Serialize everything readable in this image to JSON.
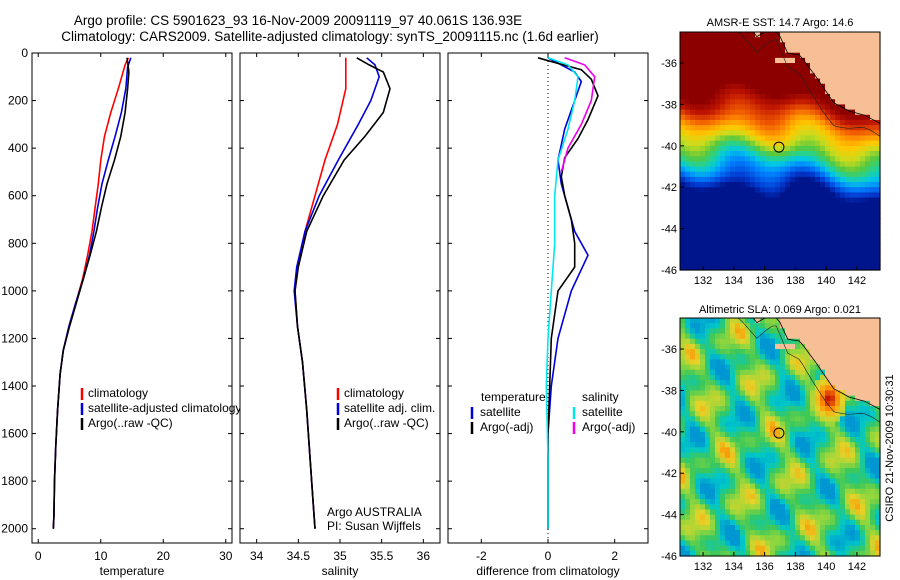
{
  "title": {
    "line1": "Argo profile: CS 5901623_93 16-Nov-2009 20091119_97 40.061S 136.93E",
    "line2": "Climatology: CARS2009. Satellite-adjusted climatology: synTS_20091115.nc (1.6d earlier)"
  },
  "side_label": "CSIRO 21-Nov-2009 10:30:31",
  "colors": {
    "climatology": "#ff0000",
    "satellite": "#0000dd",
    "argo": "#000000",
    "satellite_salinity": "#00e8ee",
    "argo_salinity": "#ee00ee",
    "land": "#f7bf96",
    "map_frame": "#000000"
  },
  "chart_data": [
    {
      "type": "line",
      "xlabel": "temperature",
      "ylabel": "",
      "xlim": [
        -1,
        31
      ],
      "ylim": [
        2060,
        0
      ],
      "xticks": [
        0,
        10,
        20,
        30
      ],
      "yticks": [
        0,
        200,
        400,
        600,
        800,
        1000,
        1200,
        1400,
        1600,
        1800,
        2000
      ],
      "legend": {
        "placement": "lower-right",
        "entries": [
          "climatology",
          "satellite-adjusted climatology",
          "Argo(..raw -QC)"
        ]
      },
      "series": [
        {
          "name": "climatology",
          "color_key": "climatology",
          "points": [
            [
              14.4,
              20
            ],
            [
              13.9,
              50
            ],
            [
              12.8,
              150
            ],
            [
              11.6,
              250
            ],
            [
              10.6,
              350
            ],
            [
              10.0,
              450
            ],
            [
              9.6,
              550
            ],
            [
              9.1,
              650
            ],
            [
              8.6,
              750
            ],
            [
              7.9,
              850
            ],
            [
              7.1,
              950
            ],
            [
              6.0,
              1050
            ],
            [
              4.9,
              1150
            ],
            [
              4.0,
              1250
            ],
            [
              3.5,
              1350
            ],
            [
              3.1,
              1500
            ],
            [
              2.8,
              1650
            ],
            [
              2.6,
              1800
            ],
            [
              2.5,
              1950
            ],
            [
              2.4,
              2000
            ]
          ]
        },
        {
          "name": "satellite-adjusted climatology",
          "color_key": "satellite",
          "points": [
            [
              14.8,
              20
            ],
            [
              14.3,
              60
            ],
            [
              14.0,
              150
            ],
            [
              13.3,
              250
            ],
            [
              12.3,
              350
            ],
            [
              11.2,
              450
            ],
            [
              10.2,
              550
            ],
            [
              9.5,
              650
            ],
            [
              8.9,
              750
            ],
            [
              8.2,
              850
            ],
            [
              7.2,
              950
            ],
            [
              6.0,
              1050
            ],
            [
              4.9,
              1150
            ],
            [
              4.0,
              1250
            ],
            [
              3.5,
              1350
            ],
            [
              3.1,
              1500
            ],
            [
              2.8,
              1650
            ],
            [
              2.6,
              1800
            ],
            [
              2.5,
              1950
            ],
            [
              2.4,
              2000
            ]
          ]
        },
        {
          "name": "Argo(..raw -QC)",
          "color_key": "argo",
          "points": [
            [
              14.2,
              20
            ],
            [
              14.5,
              80
            ],
            [
              14.3,
              150
            ],
            [
              13.9,
              250
            ],
            [
              13.2,
              350
            ],
            [
              12.2,
              450
            ],
            [
              11.0,
              550
            ],
            [
              10.1,
              650
            ],
            [
              9.3,
              750
            ],
            [
              8.3,
              850
            ],
            [
              7.2,
              950
            ],
            [
              6.1,
              1050
            ],
            [
              5.0,
              1150
            ],
            [
              4.0,
              1250
            ],
            [
              3.5,
              1350
            ],
            [
              3.1,
              1500
            ],
            [
              2.8,
              1650
            ],
            [
              2.6,
              1800
            ],
            [
              2.5,
              1950
            ],
            [
              2.4,
              2000
            ]
          ]
        }
      ]
    },
    {
      "type": "line",
      "xlabel": "salinity",
      "ylabel": "",
      "xlim": [
        33.8,
        36.2
      ],
      "ylim": [
        2060,
        0
      ],
      "xticks": [
        34,
        34.5,
        35,
        35.5,
        36
      ],
      "yticks": [
        0,
        200,
        400,
        600,
        800,
        1000,
        1200,
        1400,
        1600,
        1800,
        2000
      ],
      "legend": {
        "placement": "lower-right",
        "entries": [
          "climatology",
          "satellite adj. clim.",
          "Argo(..raw -QC)"
        ]
      },
      "annotation": [
        "Argo AUSTRALIA",
        "PI: Susan Wijffels"
      ],
      "series": [
        {
          "name": "climatology",
          "color_key": "climatology",
          "points": [
            [
              35.07,
              20
            ],
            [
              35.07,
              150
            ],
            [
              34.97,
              300
            ],
            [
              34.82,
              450
            ],
            [
              34.7,
              600
            ],
            [
              34.58,
              750
            ],
            [
              34.49,
              900
            ],
            [
              34.46,
              1000
            ],
            [
              34.49,
              1150
            ],
            [
              34.55,
              1300
            ],
            [
              34.6,
              1500
            ],
            [
              34.64,
              1700
            ],
            [
              34.68,
              1900
            ],
            [
              34.7,
              2000
            ]
          ]
        },
        {
          "name": "satellite adj. clim.",
          "color_key": "satellite",
          "points": [
            [
              35.32,
              20
            ],
            [
              35.42,
              50
            ],
            [
              35.47,
              100
            ],
            [
              35.37,
              200
            ],
            [
              35.22,
              300
            ],
            [
              34.98,
              450
            ],
            [
              34.75,
              600
            ],
            [
              34.58,
              750
            ],
            [
              34.48,
              900
            ],
            [
              34.45,
              1000
            ],
            [
              34.49,
              1150
            ],
            [
              34.55,
              1300
            ],
            [
              34.6,
              1500
            ],
            [
              34.64,
              1700
            ],
            [
              34.68,
              1900
            ],
            [
              34.7,
              2000
            ]
          ]
        },
        {
          "name": "Argo(..raw -QC)",
          "color_key": "argo",
          "points": [
            [
              35.2,
              20
            ],
            [
              35.35,
              50
            ],
            [
              35.52,
              80
            ],
            [
              35.6,
              150
            ],
            [
              35.52,
              250
            ],
            [
              35.3,
              350
            ],
            [
              35.05,
              450
            ],
            [
              34.8,
              600
            ],
            [
              34.6,
              750
            ],
            [
              34.5,
              900
            ],
            [
              34.46,
              1000
            ],
            [
              34.49,
              1150
            ],
            [
              34.55,
              1300
            ],
            [
              34.6,
              1500
            ],
            [
              34.64,
              1700
            ],
            [
              34.68,
              1900
            ],
            [
              34.7,
              2000
            ]
          ]
        }
      ]
    },
    {
      "type": "line",
      "xlabel": "difference from climatology",
      "ylabel": "",
      "xlim": [
        -3,
        3
      ],
      "ylim": [
        2060,
        0
      ],
      "xticks": [
        -2,
        0,
        2
      ],
      "yticks": [
        0,
        200,
        400,
        600,
        800,
        1000,
        1200,
        1400,
        1600,
        1800,
        2000
      ],
      "legend": {
        "placement": "lower-center",
        "groups": [
          {
            "header": "temperature",
            "entries": [
              "satellite",
              "Argo(-adj)"
            ]
          },
          {
            "header": "salinity",
            "entries": [
              "satellite",
              "Argo(-adj)"
            ]
          }
        ]
      },
      "series": [
        {
          "name": "temperature satellite",
          "color_key": "satellite",
          "points": [
            [
              0.0,
              20
            ],
            [
              0.4,
              50
            ],
            [
              0.8,
              80
            ],
            [
              1.0,
              120
            ],
            [
              0.8,
              200
            ],
            [
              0.5,
              320
            ],
            [
              0.3,
              450
            ],
            [
              0.4,
              550
            ],
            [
              0.6,
              650
            ],
            [
              0.8,
              750
            ],
            [
              1.2,
              850
            ],
            [
              0.7,
              1000
            ],
            [
              0.3,
              1200
            ],
            [
              0.1,
              1400
            ],
            [
              0.0,
              1600
            ],
            [
              0.0,
              2000
            ]
          ]
        },
        {
          "name": "temperature Argo(-adj)",
          "color_key": "argo",
          "points": [
            [
              -0.3,
              20
            ],
            [
              0.2,
              40
            ],
            [
              1.0,
              70
            ],
            [
              1.3,
              110
            ],
            [
              1.5,
              180
            ],
            [
              1.2,
              280
            ],
            [
              0.9,
              360
            ],
            [
              0.5,
              440
            ],
            [
              0.4,
              520
            ],
            [
              0.5,
              600
            ],
            [
              0.7,
              700
            ],
            [
              0.8,
              800
            ],
            [
              0.8,
              900
            ],
            [
              0.3,
              1000
            ],
            [
              0.1,
              1200
            ],
            [
              0.05,
              1400
            ],
            [
              0.0,
              1600
            ],
            [
              0.0,
              2000
            ]
          ]
        },
        {
          "name": "salinity satellite",
          "color_key": "satellite_salinity",
          "points": [
            [
              0.0,
              20
            ],
            [
              0.6,
              50
            ],
            [
              0.9,
              100
            ],
            [
              0.8,
              200
            ],
            [
              0.6,
              320
            ],
            [
              0.3,
              450
            ],
            [
              0.2,
              600
            ],
            [
              0.2,
              800
            ],
            [
              0.1,
              1000
            ],
            [
              0.0,
              1200
            ],
            [
              -0.05,
              1400
            ],
            [
              0.0,
              1700
            ],
            [
              0.0,
              2000
            ]
          ]
        },
        {
          "name": "salinity Argo(-adj)",
          "color_key": "argo_salinity",
          "points": [
            [
              0.5,
              20
            ],
            [
              1.1,
              50
            ],
            [
              1.4,
              100
            ],
            [
              1.3,
              200
            ],
            [
              1.0,
              300
            ],
            [
              0.6,
              400
            ],
            [
              0.4,
              500
            ]
          ]
        }
      ]
    },
    {
      "type": "heatmap",
      "title": "AMSR-E SST: 14.7  Argo: 14.6",
      "xlim": [
        130.5,
        143.5
      ],
      "ylim": [
        -46,
        -34.5
      ],
      "xticks": [
        132,
        134,
        136,
        138,
        140,
        142
      ],
      "yticks": [
        -36,
        -38,
        -40,
        -42,
        -44,
        -46
      ],
      "marker": {
        "lon": 136.93,
        "lat": -40.06
      }
    },
    {
      "type": "heatmap",
      "title": "Altimetric SLA: 0.069  Argo: 0.021",
      "xlim": [
        130.5,
        143.5
      ],
      "ylim": [
        -46,
        -34.5
      ],
      "xticks": [
        132,
        134,
        136,
        138,
        140,
        142
      ],
      "yticks": [
        -36,
        -38,
        -40,
        -42,
        -44,
        -46
      ],
      "marker": {
        "lon": 136.93,
        "lat": -40.06
      }
    }
  ]
}
